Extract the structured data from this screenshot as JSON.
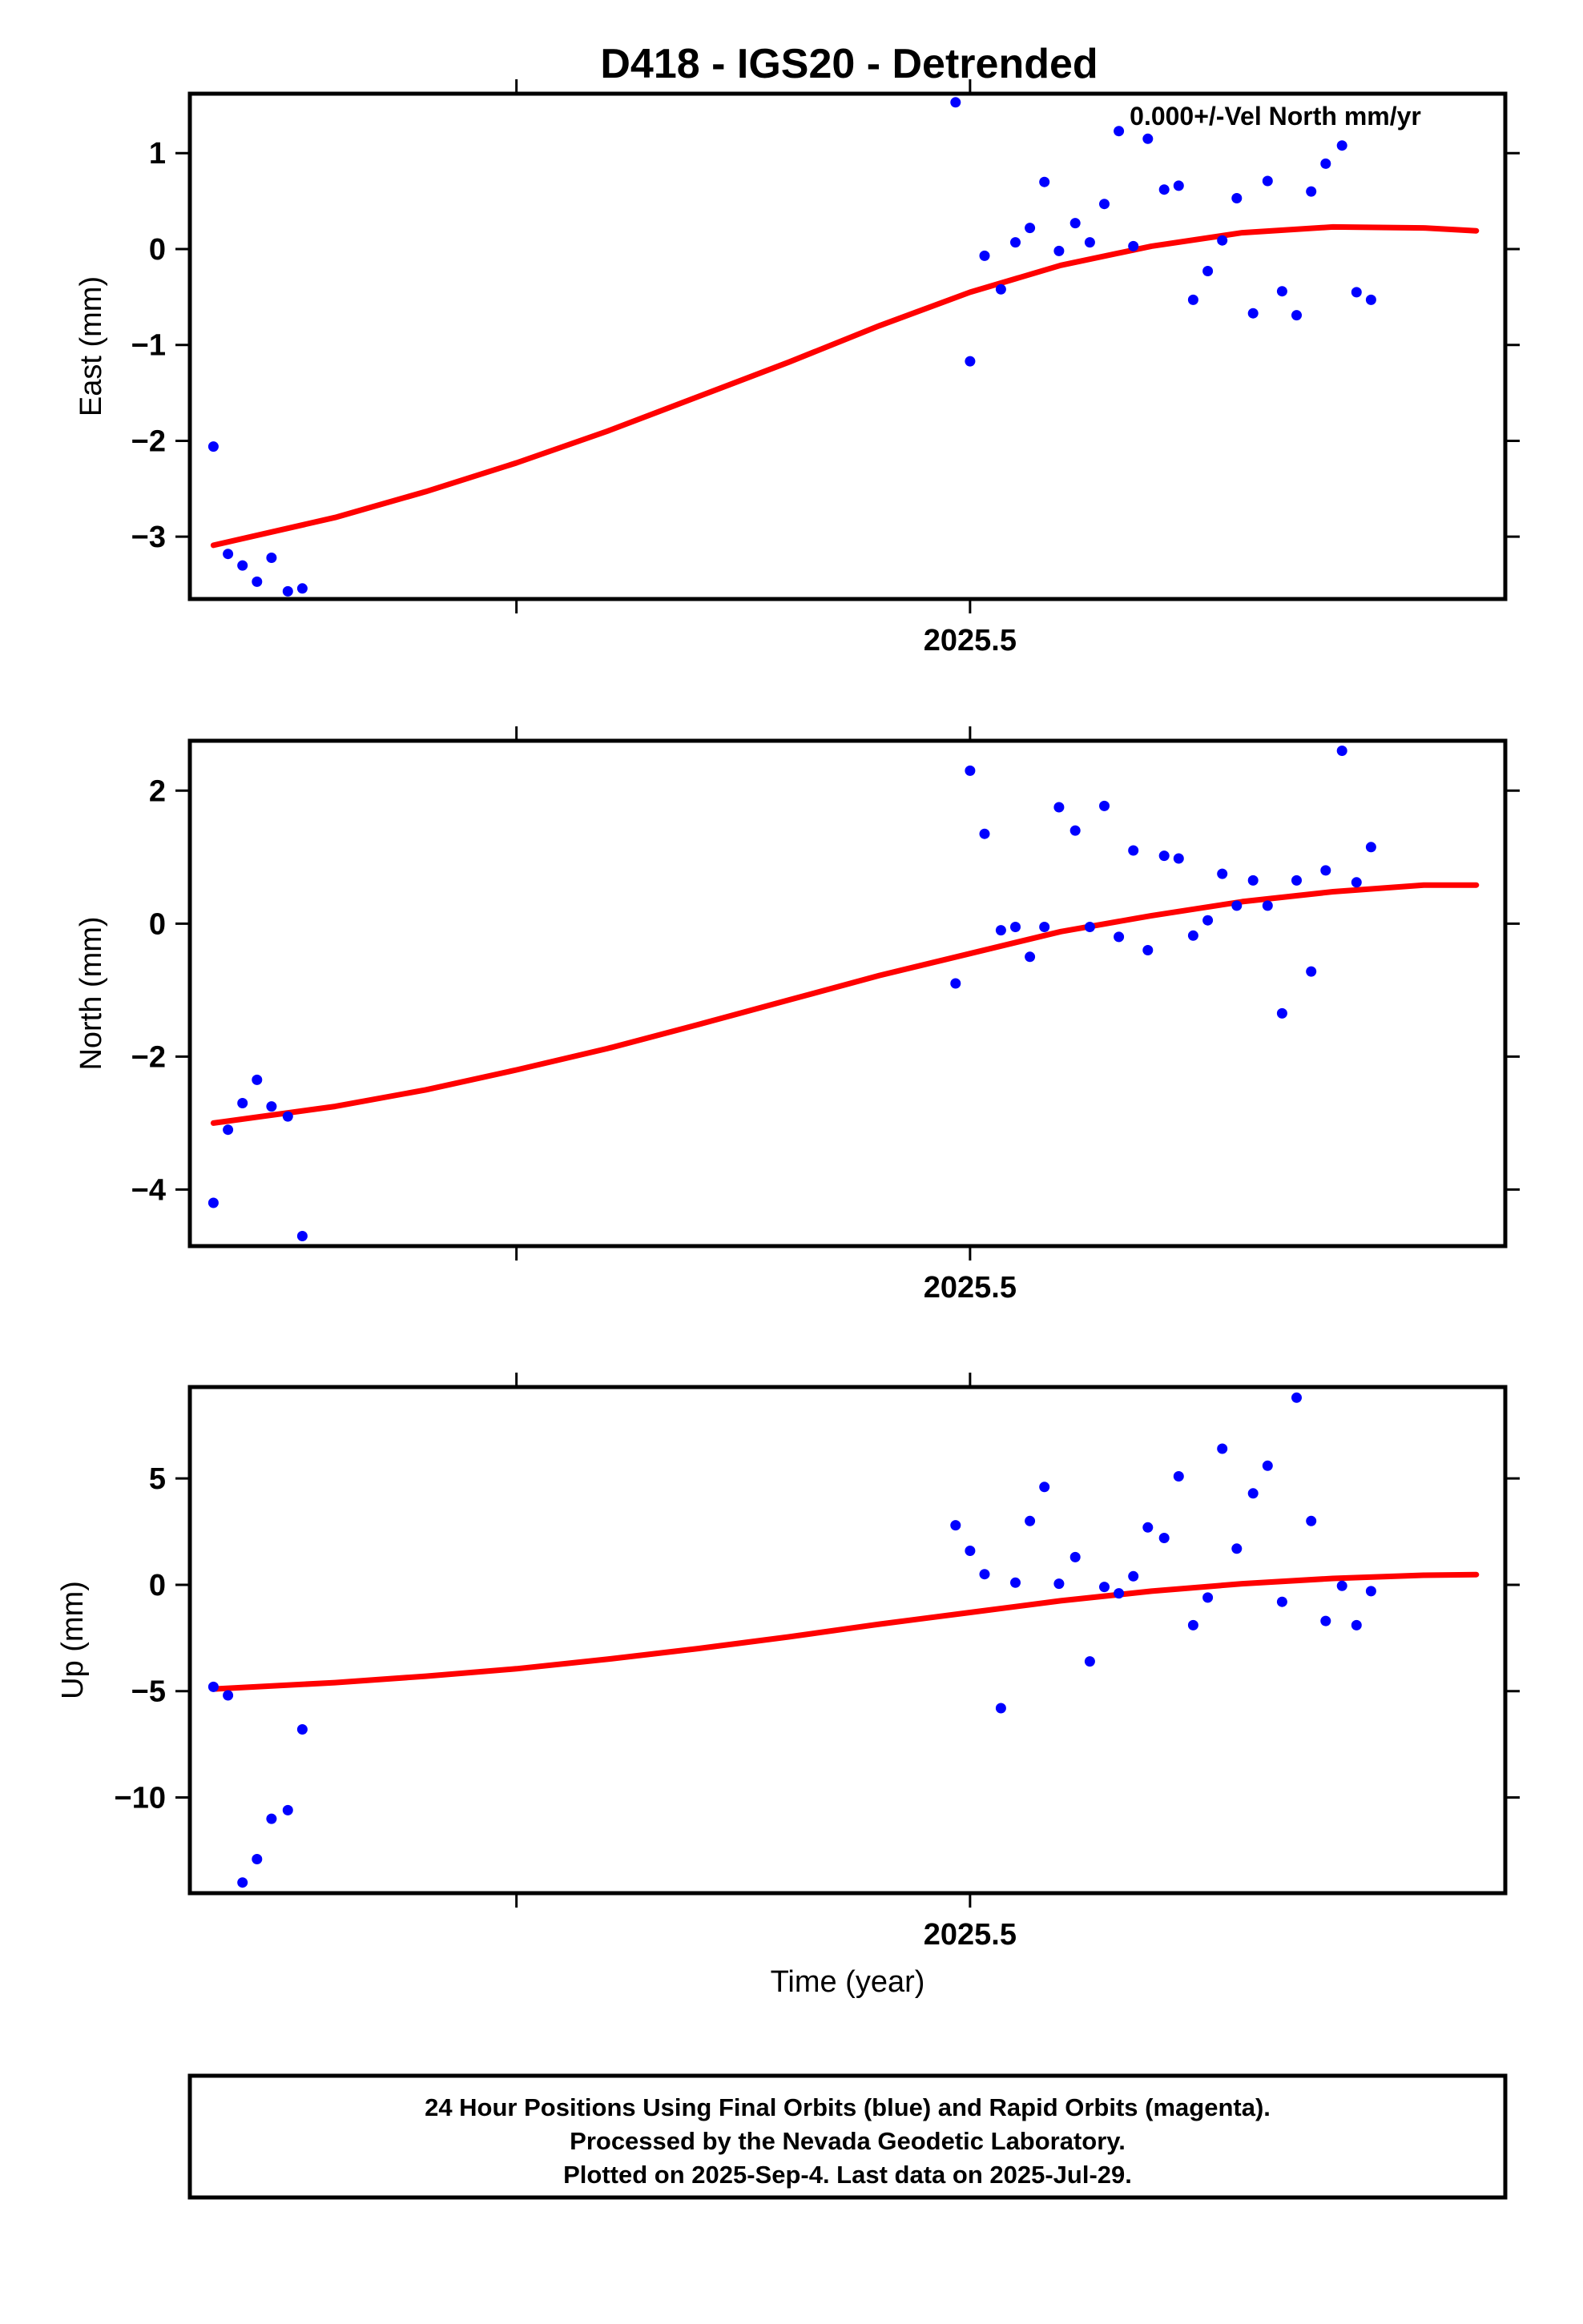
{
  "title": "D418 - IGS20 - Detrended",
  "chart_data": [
    {
      "type": "scatter",
      "component": "east",
      "ylabel": "East (mm)",
      "xlabel": "",
      "annotation": "0.000+/-Vel North mm/yr",
      "xlim": [
        2025.07,
        2025.795
      ],
      "ylim": [
        -3.65,
        1.62
      ],
      "yticks": [
        {
          "v": 1,
          "label": "1"
        },
        {
          "v": 0,
          "label": "0"
        },
        {
          "v": -1,
          "label": "−1"
        },
        {
          "v": -2,
          "label": "−2"
        },
        {
          "v": -3,
          "label": "−3"
        }
      ],
      "xticks": [
        {
          "v": 2025.25,
          "label": ""
        },
        {
          "v": 2025.5,
          "label": "2025.5"
        }
      ],
      "grid": false,
      "points_color": "#0000ff",
      "fit_color": "#ff0000",
      "points": [
        [
          2025.083,
          -2.06
        ],
        [
          2025.091,
          -3.18
        ],
        [
          2025.099,
          -3.3
        ],
        [
          2025.107,
          -3.47
        ],
        [
          2025.115,
          -3.22
        ],
        [
          2025.124,
          -3.57
        ],
        [
          2025.132,
          -3.54
        ],
        [
          2025.492,
          1.53
        ],
        [
          2025.5,
          -1.17
        ],
        [
          2025.508,
          -0.07
        ],
        [
          2025.517,
          -0.42
        ],
        [
          2025.525,
          0.07
        ],
        [
          2025.533,
          0.22
        ],
        [
          2025.541,
          0.7
        ],
        [
          2025.549,
          -0.02
        ],
        [
          2025.558,
          0.27
        ],
        [
          2025.566,
          0.07
        ],
        [
          2025.574,
          0.47
        ],
        [
          2025.582,
          1.23
        ],
        [
          2025.59,
          0.03
        ],
        [
          2025.598,
          1.15
        ],
        [
          2025.607,
          0.62
        ],
        [
          2025.615,
          0.66
        ],
        [
          2025.623,
          -0.53
        ],
        [
          2025.631,
          -0.23
        ],
        [
          2025.639,
          0.09
        ],
        [
          2025.647,
          0.53
        ],
        [
          2025.656,
          -0.67
        ],
        [
          2025.664,
          0.71
        ],
        [
          2025.672,
          -0.44
        ],
        [
          2025.68,
          -0.69
        ],
        [
          2025.688,
          0.6
        ],
        [
          2025.696,
          0.89
        ],
        [
          2025.705,
          1.08
        ],
        [
          2025.713,
          -0.45
        ],
        [
          2025.721,
          -0.53
        ]
      ],
      "fit": [
        [
          2025.083,
          -3.09
        ],
        [
          2025.15,
          -2.8
        ],
        [
          2025.2,
          -2.53
        ],
        [
          2025.25,
          -2.23
        ],
        [
          2025.3,
          -1.9
        ],
        [
          2025.35,
          -1.54
        ],
        [
          2025.4,
          -1.18
        ],
        [
          2025.45,
          -0.8
        ],
        [
          2025.5,
          -0.45
        ],
        [
          2025.55,
          -0.17
        ],
        [
          2025.6,
          0.03
        ],
        [
          2025.65,
          0.17
        ],
        [
          2025.7,
          0.23
        ],
        [
          2025.75,
          0.22
        ],
        [
          2025.779,
          0.19
        ]
      ]
    },
    {
      "type": "scatter",
      "component": "north",
      "ylabel": "North (mm)",
      "xlabel": "",
      "xlim": [
        2025.07,
        2025.795
      ],
      "ylim": [
        -4.85,
        2.75
      ],
      "yticks": [
        {
          "v": 2,
          "label": "2"
        },
        {
          "v": 0,
          "label": "0"
        },
        {
          "v": -2,
          "label": "−2"
        },
        {
          "v": -4,
          "label": "−4"
        }
      ],
      "xticks": [
        {
          "v": 2025.25,
          "label": ""
        },
        {
          "v": 2025.5,
          "label": "2025.5"
        }
      ],
      "grid": false,
      "points_color": "#0000ff",
      "fit_color": "#ff0000",
      "points": [
        [
          2025.083,
          -4.2
        ],
        [
          2025.091,
          -3.1
        ],
        [
          2025.099,
          -2.7
        ],
        [
          2025.107,
          -2.35
        ],
        [
          2025.115,
          -2.75
        ],
        [
          2025.124,
          -2.9
        ],
        [
          2025.132,
          -4.7
        ],
        [
          2025.492,
          -0.9
        ],
        [
          2025.5,
          2.3
        ],
        [
          2025.508,
          1.35
        ],
        [
          2025.517,
          -0.1
        ],
        [
          2025.525,
          -0.05
        ],
        [
          2025.533,
          -0.5
        ],
        [
          2025.541,
          -0.05
        ],
        [
          2025.549,
          1.75
        ],
        [
          2025.558,
          1.4
        ],
        [
          2025.566,
          -0.05
        ],
        [
          2025.574,
          1.77
        ],
        [
          2025.582,
          -0.2
        ],
        [
          2025.59,
          1.1
        ],
        [
          2025.598,
          -0.4
        ],
        [
          2025.607,
          1.02
        ],
        [
          2025.615,
          0.98
        ],
        [
          2025.623,
          -0.18
        ],
        [
          2025.631,
          0.05
        ],
        [
          2025.639,
          0.75
        ],
        [
          2025.647,
          0.27
        ],
        [
          2025.656,
          0.65
        ],
        [
          2025.664,
          0.27
        ],
        [
          2025.672,
          -1.35
        ],
        [
          2025.68,
          0.65
        ],
        [
          2025.688,
          -0.72
        ],
        [
          2025.696,
          0.8
        ],
        [
          2025.705,
          2.6
        ],
        [
          2025.713,
          0.62
        ],
        [
          2025.721,
          1.15
        ]
      ],
      "fit": [
        [
          2025.083,
          -3.0
        ],
        [
          2025.15,
          -2.75
        ],
        [
          2025.2,
          -2.5
        ],
        [
          2025.25,
          -2.2
        ],
        [
          2025.3,
          -1.88
        ],
        [
          2025.35,
          -1.52
        ],
        [
          2025.4,
          -1.15
        ],
        [
          2025.45,
          -0.78
        ],
        [
          2025.5,
          -0.45
        ],
        [
          2025.55,
          -0.12
        ],
        [
          2025.6,
          0.12
        ],
        [
          2025.65,
          0.33
        ],
        [
          2025.7,
          0.48
        ],
        [
          2025.75,
          0.58
        ],
        [
          2025.779,
          0.58
        ]
      ]
    },
    {
      "type": "scatter",
      "component": "up",
      "ylabel": "Up (mm)",
      "xlabel": "Time (year)",
      "xlim": [
        2025.07,
        2025.795
      ],
      "ylim": [
        -14.5,
        9.3
      ],
      "yticks": [
        {
          "v": 5,
          "label": "5"
        },
        {
          "v": 0,
          "label": "0"
        },
        {
          "v": -5,
          "label": "−5"
        },
        {
          "v": -10,
          "label": "−10"
        }
      ],
      "xticks": [
        {
          "v": 2025.25,
          "label": ""
        },
        {
          "v": 2025.5,
          "label": "2025.5"
        }
      ],
      "grid": false,
      "points_color": "#0000ff",
      "fit_color": "#ff0000",
      "points": [
        [
          2025.083,
          -4.8
        ],
        [
          2025.091,
          -5.2
        ],
        [
          2025.099,
          -14.0
        ],
        [
          2025.107,
          -12.9
        ],
        [
          2025.115,
          -11.0
        ],
        [
          2025.124,
          -10.6
        ],
        [
          2025.132,
          -6.8
        ],
        [
          2025.492,
          2.8
        ],
        [
          2025.5,
          1.6
        ],
        [
          2025.508,
          0.5
        ],
        [
          2025.517,
          -5.8
        ],
        [
          2025.525,
          0.1
        ],
        [
          2025.533,
          3.0
        ],
        [
          2025.541,
          4.6
        ],
        [
          2025.549,
          0.05
        ],
        [
          2025.558,
          1.3
        ],
        [
          2025.566,
          -3.6
        ],
        [
          2025.574,
          -0.1
        ],
        [
          2025.582,
          -0.4
        ],
        [
          2025.59,
          0.4
        ],
        [
          2025.598,
          2.7
        ],
        [
          2025.607,
          2.2
        ],
        [
          2025.615,
          5.1
        ],
        [
          2025.623,
          -1.9
        ],
        [
          2025.631,
          -0.6
        ],
        [
          2025.639,
          6.4
        ],
        [
          2025.647,
          1.7
        ],
        [
          2025.656,
          4.3
        ],
        [
          2025.664,
          5.6
        ],
        [
          2025.672,
          -0.8
        ],
        [
          2025.68,
          8.8
        ],
        [
          2025.688,
          3.0
        ],
        [
          2025.696,
          -1.7
        ],
        [
          2025.705,
          -0.05
        ],
        [
          2025.713,
          -1.9
        ],
        [
          2025.721,
          -0.3
        ]
      ],
      "fit": [
        [
          2025.083,
          -4.9
        ],
        [
          2025.15,
          -4.6
        ],
        [
          2025.2,
          -4.3
        ],
        [
          2025.25,
          -3.95
        ],
        [
          2025.3,
          -3.5
        ],
        [
          2025.35,
          -3.0
        ],
        [
          2025.4,
          -2.45
        ],
        [
          2025.45,
          -1.85
        ],
        [
          2025.5,
          -1.3
        ],
        [
          2025.55,
          -0.75
        ],
        [
          2025.6,
          -0.3
        ],
        [
          2025.65,
          0.05
        ],
        [
          2025.7,
          0.3
        ],
        [
          2025.75,
          0.45
        ],
        [
          2025.779,
          0.48
        ]
      ]
    }
  ],
  "footer": {
    "line1": "24 Hour Positions Using Final Orbits (blue) and Rapid Orbits (magenta).",
    "line2": "Processed by the Nevada Geodetic Laboratory.",
    "line3": "Plotted on 2025-Sep-4. Last data on 2025-Jul-29."
  }
}
